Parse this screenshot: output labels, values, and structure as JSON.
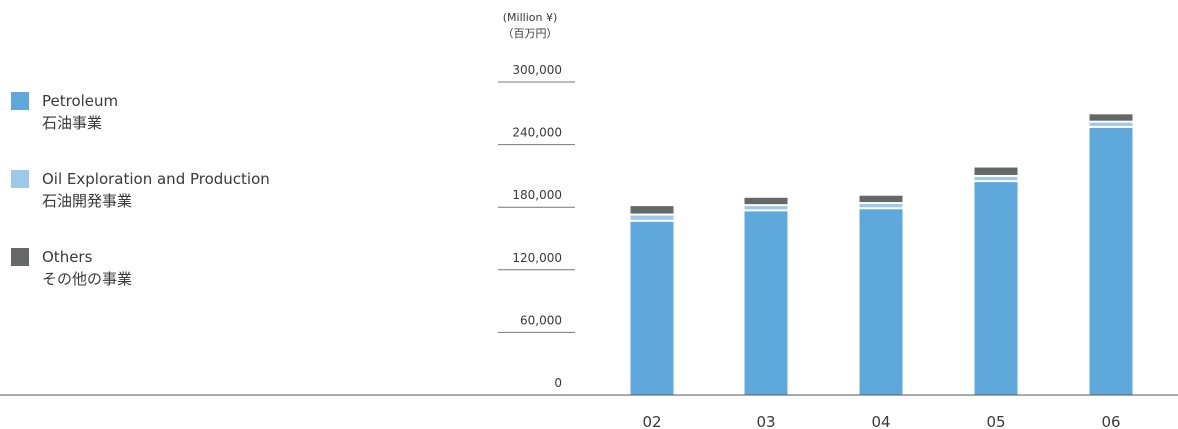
{
  "unit": {
    "line1": "(Million ¥)",
    "line2": "（百万円）"
  },
  "legend": {
    "items": [
      {
        "label_en": "Petroleum",
        "label_ja": "石油事業",
        "color": "#5fa8dc"
      },
      {
        "label_en": "Oil Exploration and Production",
        "label_ja": "石油開発事業",
        "color": "#9cc8ea"
      },
      {
        "label_en": "Others",
        "label_ja": "その他の事業",
        "color": "#646866"
      }
    ]
  },
  "chart_data": {
    "type": "bar",
    "stacked": true,
    "categories": [
      "02",
      "03",
      "04",
      "05",
      "06"
    ],
    "series": [
      {
        "name": "Petroleum 石油事業",
        "color": "#5fa8dc",
        "values": [
          166000,
          176000,
          178000,
          204000,
          256000
        ]
      },
      {
        "name": "Oil Exploration and Production 石油開発事業",
        "color": "#9cc8ea",
        "values": [
          6000,
          5000,
          5000,
          5000,
          5000
        ]
      },
      {
        "name": "Others その他の事業",
        "color": "#646866",
        "values": [
          9000,
          8000,
          8000,
          9000,
          8000
        ]
      }
    ],
    "yticks": [
      0,
      60000,
      120000,
      180000,
      240000,
      300000
    ],
    "ytick_labels": [
      "0",
      "60,000",
      "120,000",
      "180,000",
      "240,000",
      "300,000"
    ],
    "ylim": [
      0,
      300000
    ],
    "ylabel": "(Million ¥)（百万円）",
    "grid": false,
    "legend_position": "left"
  }
}
